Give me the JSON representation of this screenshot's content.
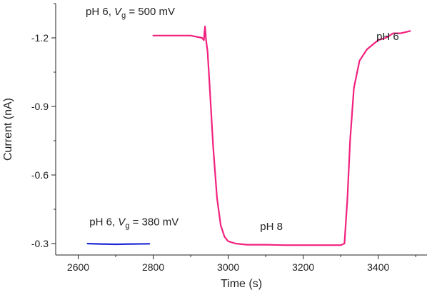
{
  "chart_data": {
    "type": "line",
    "title": "",
    "xlabel": "Time  (s)",
    "ylabel": "Current  (nA)",
    "xlim": [
      2540,
      3530
    ],
    "ylim": [
      -0.25,
      -1.35
    ],
    "x_ticks": [
      2600,
      2800,
      3000,
      3200,
      3400
    ],
    "x_tick_labels": [
      "2600",
      "2800",
      "3000",
      "3200",
      "3400"
    ],
    "y_ticks": [
      -1.2,
      -0.9,
      -0.6,
      -0.3
    ],
    "y_tick_labels": [
      "-1.2",
      "-0.9",
      "-0.6",
      "-0.3"
    ],
    "grid": false,
    "series": [
      {
        "name": "pH 6, Vg = 380 mV",
        "color": "#1f2ad6",
        "x": [
          2625,
          2660,
          2700,
          2740,
          2790
        ],
        "y": [
          -0.3,
          -0.298,
          -0.297,
          -0.298,
          -0.299
        ]
      },
      {
        "name": "pH 6 / pH 8 / pH 6, Vg = 500 mV",
        "color": "#f2217e",
        "x": [
          2800,
          2830,
          2860,
          2900,
          2930,
          2935,
          2938,
          2941,
          2945,
          2950,
          2960,
          2970,
          2980,
          2990,
          3000,
          3020,
          3050,
          3100,
          3150,
          3200,
          3250,
          3300,
          3310,
          3318,
          3325,
          3335,
          3350,
          3370,
          3385,
          3400,
          3420,
          3440,
          3460,
          3485
        ],
        "y": [
          -1.21,
          -1.21,
          -1.21,
          -1.21,
          -1.2,
          -1.19,
          -1.25,
          -1.19,
          -1.14,
          -1.0,
          -0.72,
          -0.5,
          -0.38,
          -0.33,
          -0.31,
          -0.3,
          -0.295,
          -0.295,
          -0.293,
          -0.293,
          -0.293,
          -0.293,
          -0.3,
          -0.5,
          -0.75,
          -0.98,
          -1.1,
          -1.15,
          -1.17,
          -1.19,
          -1.2,
          -1.22,
          -1.22,
          -1.23
        ]
      }
    ],
    "annotations": [
      {
        "prefix": "pH 6, ",
        "var": "V",
        "sub": "g",
        "suffix": " = 500 mV",
        "x": 2620,
        "y": -1.3
      },
      {
        "prefix": "pH 6, ",
        "var": "V",
        "sub": "g",
        "suffix": " = 380 mV",
        "x": 2630,
        "y": -0.38
      },
      {
        "prefix": "pH 8",
        "var": "",
        "sub": "",
        "suffix": "",
        "x": 3085,
        "y": -0.36
      },
      {
        "prefix": "pH 6",
        "var": "",
        "sub": "",
        "suffix": "",
        "x": 3395,
        "y": -1.19
      }
    ]
  }
}
